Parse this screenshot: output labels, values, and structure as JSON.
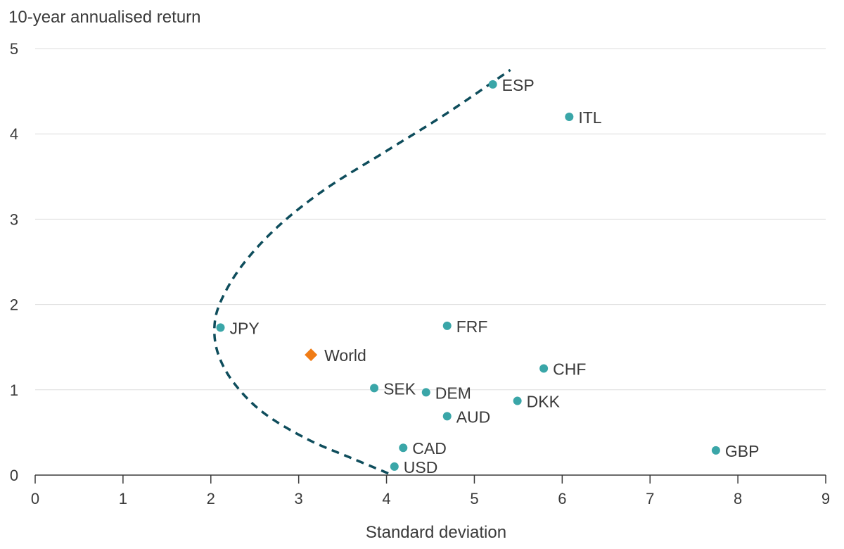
{
  "chart_data": {
    "type": "scatter",
    "title": "",
    "xlabel": "Standard deviation",
    "ylabel": "10-year annualised return",
    "xlim": [
      0,
      9
    ],
    "ylim": [
      0,
      5
    ],
    "x_ticks": [
      "0",
      "1",
      "2",
      "3",
      "4",
      "5",
      "6",
      "7",
      "8",
      "9"
    ],
    "y_ticks": [
      "0",
      "1",
      "2",
      "3",
      "4",
      "5"
    ],
    "grid": "horizontal",
    "colors": {
      "points": "#3aa6a8",
      "world": "#f07c16",
      "frontier": "#0e4d5c",
      "grid": "#dddddd",
      "axis": "#3a3a3a"
    },
    "points": [
      {
        "label": "ESP",
        "x": 5.21,
        "y": 4.58
      },
      {
        "label": "ITL",
        "x": 6.08,
        "y": 4.2
      },
      {
        "label": "JPY",
        "x": 2.11,
        "y": 1.73
      },
      {
        "label": "FRF",
        "x": 4.69,
        "y": 1.75
      },
      {
        "label": "CHF",
        "x": 5.79,
        "y": 1.25
      },
      {
        "label": "SEK",
        "x": 3.86,
        "y": 1.02
      },
      {
        "label": "DEM",
        "x": 4.45,
        "y": 0.97
      },
      {
        "label": "DKK",
        "x": 5.49,
        "y": 0.87
      },
      {
        "label": "AUD",
        "x": 4.69,
        "y": 0.69
      },
      {
        "label": "CAD",
        "x": 4.19,
        "y": 0.32
      },
      {
        "label": "USD",
        "x": 4.09,
        "y": 0.1
      },
      {
        "label": "GBP",
        "x": 7.75,
        "y": 0.29
      }
    ],
    "world": {
      "label": "World",
      "x": 3.14,
      "y": 1.41
    },
    "frontier": [
      [
        4.02,
        0.02
      ],
      [
        3.6,
        0.2
      ],
      [
        3.1,
        0.42
      ],
      [
        2.6,
        0.73
      ],
      [
        2.27,
        1.07
      ],
      [
        2.09,
        1.4
      ],
      [
        2.04,
        1.72
      ],
      [
        2.11,
        2.03
      ],
      [
        2.35,
        2.45
      ],
      [
        2.75,
        2.9
      ],
      [
        3.3,
        3.35
      ],
      [
        4.0,
        3.8
      ],
      [
        4.7,
        4.25
      ],
      [
        5.41,
        4.75
      ]
    ]
  }
}
